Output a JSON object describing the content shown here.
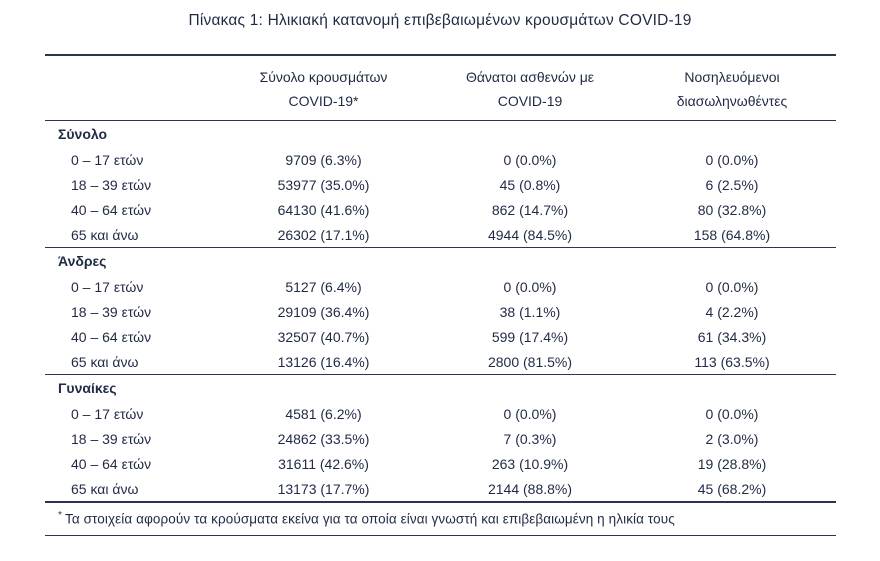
{
  "colors": {
    "text": "#1f2a44",
    "rule": "#2a3550",
    "background": "#ffffff"
  },
  "title": "Πίνακας 1: Ηλικιακή κατανομή επιβεβαιωμένων κρουσμάτων COVID-19",
  "header": {
    "columns": [
      {
        "line1": "Σύνολο κρουσμάτων",
        "line2": "COVID-19*"
      },
      {
        "line1": "Θάνατοι ασθενών με",
        "line2": "COVID-19"
      },
      {
        "line1": "Νοσηλευόμενοι",
        "line2": "διασωληνωθέντες"
      }
    ]
  },
  "sections": [
    {
      "label": "Σύνολο",
      "rows": [
        {
          "label": "0 – 17 ετών",
          "cells": [
            "9709 (6.3%)",
            "0 (0.0%)",
            "0 (0.0%)"
          ]
        },
        {
          "label": "18 – 39 ετών",
          "cells": [
            "53977 (35.0%)",
            "45 (0.8%)",
            "6 (2.5%)"
          ]
        },
        {
          "label": "40 – 64 ετών",
          "cells": [
            "64130 (41.6%)",
            "862 (14.7%)",
            "80 (32.8%)"
          ]
        },
        {
          "label": "65 και άνω",
          "cells": [
            "26302 (17.1%)",
            "4944 (84.5%)",
            "158 (64.8%)"
          ]
        }
      ]
    },
    {
      "label": "Άνδρες",
      "rows": [
        {
          "label": "0 – 17 ετών",
          "cells": [
            "5127 (6.4%)",
            "0 (0.0%)",
            "0 (0.0%)"
          ]
        },
        {
          "label": "18 – 39 ετών",
          "cells": [
            "29109 (36.4%)",
            "38 (1.1%)",
            "4 (2.2%)"
          ]
        },
        {
          "label": "40 – 64 ετών",
          "cells": [
            "32507 (40.7%)",
            "599 (17.4%)",
            "61 (34.3%)"
          ]
        },
        {
          "label": "65 και άνω",
          "cells": [
            "13126 (16.4%)",
            "2800 (81.5%)",
            "113 (63.5%)"
          ]
        }
      ]
    },
    {
      "label": "Γυναίκες",
      "rows": [
        {
          "label": "0 – 17 ετών",
          "cells": [
            "4581 (6.2%)",
            "0 (0.0%)",
            "0 (0.0%)"
          ]
        },
        {
          "label": "18 – 39 ετών",
          "cells": [
            "24862 (33.5%)",
            "7 (0.3%)",
            "2 (3.0%)"
          ]
        },
        {
          "label": "40 – 64 ετών",
          "cells": [
            "31611 (42.6%)",
            "263 (10.9%)",
            "19 (28.8%)"
          ]
        },
        {
          "label": "65 και άνω",
          "cells": [
            "13173 (17.7%)",
            "2144 (88.8%)",
            "45 (68.2%)"
          ]
        }
      ]
    }
  ],
  "footnote": {
    "marker": "*",
    "text": "Τα στοιχεία αφορούν τα κρούσματα εκείνα για τα οποία είναι γνωστή και επιβεβαιωμένη η ηλικία τους"
  }
}
